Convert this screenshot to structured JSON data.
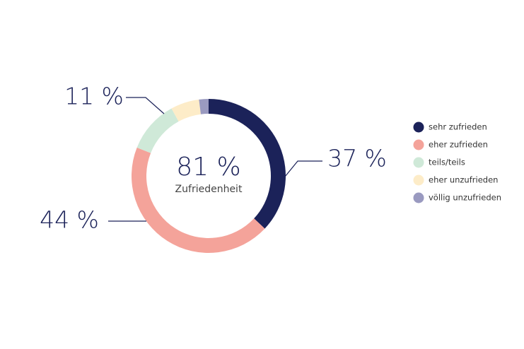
{
  "chart_data": {
    "type": "donut",
    "categories": [
      "sehr zufrieden",
      "eher zufrieden",
      "teils/teils",
      "eher unzufrieden",
      "völlig unzufrieden"
    ],
    "values": [
      37,
      44,
      11,
      6,
      2
    ],
    "value_labels": [
      "37 %",
      "44 %",
      "11 %",
      null,
      null
    ],
    "colors": [
      "#1b2259",
      "#f4a39a",
      "#cfe9d8",
      "#fdecc8",
      "#9a9ac0"
    ],
    "center_value": "81 %",
    "center_caption": "Zufriedenheit"
  }
}
